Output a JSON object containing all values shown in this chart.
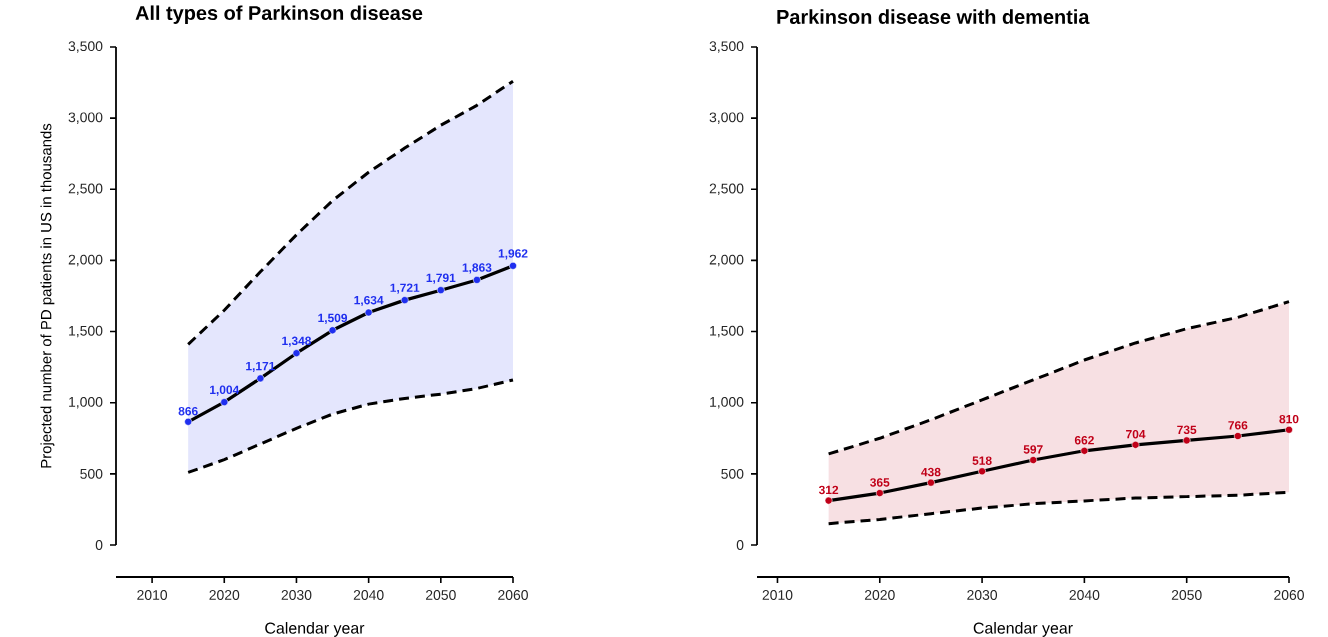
{
  "chart_data": [
    {
      "type": "line",
      "title": "All types of Parkinson disease",
      "xlabel": "Calendar year",
      "ylabel": "Projected number of PD patients in US in thousands",
      "x": [
        2015,
        2020,
        2025,
        2030,
        2035,
        2040,
        2045,
        2050,
        2055,
        2060
      ],
      "series": [
        {
          "color": "#1f2fef",
          "values": [
            866,
            1004,
            1171,
            1348,
            1509,
            1634,
            1721,
            1791,
            1863,
            1962
          ],
          "value_labels": [
            "866",
            "1,004",
            "1,171",
            "1,348",
            "1,509",
            "1,634",
            "1,721",
            "1,791",
            "1,863",
            "1,962"
          ],
          "lower": [
            510,
            600,
            710,
            820,
            920,
            990,
            1030,
            1060,
            1100,
            1160
          ],
          "upper": [
            1410,
            1650,
            1920,
            2180,
            2420,
            2620,
            2790,
            2950,
            3090,
            3260
          ]
        },
        {
          "color": "#000000",
          "line_style": "dashed",
          "marker": "none",
          "values": [
            1410,
            1650,
            1920,
            2180,
            2420,
            2620,
            2790,
            2950,
            3090,
            3260
          ]
        },
        {
          "color": "#000000",
          "line_style": "dashed",
          "marker": "none",
          "values": [
            510,
            600,
            710,
            820,
            920,
            990,
            1030,
            1060,
            1100,
            1160
          ]
        }
      ],
      "xlim": [
        2005,
        2060
      ],
      "ylim": [
        0,
        3500
      ],
      "xticks": [
        2010,
        2020,
        2030,
        2040,
        2050,
        2060
      ],
      "yticks": [
        0,
        500,
        {
          "value": 1000,
          "label": "1,000"
        },
        {
          "value": 1500,
          "label": "1,500"
        },
        {
          "value": 2000,
          "label": "2,000"
        },
        {
          "value": 2500,
          "label": "2,500"
        },
        {
          "value": 3000,
          "label": "3,000"
        },
        {
          "value": 3500,
          "label": "3,500"
        }
      ],
      "marker": "circle",
      "line_style": "solid"
    },
    {
      "type": "line",
      "title": "Parkinson disease with dementia",
      "xlabel": "Calendar year",
      "x": [
        2015,
        2020,
        2025,
        2030,
        2035,
        2040,
        2045,
        2050,
        2055,
        2060
      ],
      "series": [
        {
          "color": "#c00018",
          "values": [
            312,
            365,
            438,
            518,
            597,
            662,
            704,
            735,
            766,
            810
          ],
          "value_labels": [
            "312",
            "365",
            "438",
            "518",
            "597",
            "662",
            "704",
            "735",
            "766",
            "810"
          ],
          "lower": [
            150,
            180,
            220,
            260,
            290,
            310,
            330,
            340,
            350,
            370
          ],
          "upper": [
            640,
            750,
            880,
            1020,
            1160,
            1300,
            1420,
            1520,
            1600,
            1710
          ]
        },
        {
          "color": "#000000",
          "line_style": "dashed",
          "marker": "none",
          "values": [
            640,
            750,
            880,
            1020,
            1160,
            1300,
            1420,
            1520,
            1600,
            1710
          ]
        },
        {
          "color": "#000000",
          "line_style": "dashed",
          "marker": "none",
          "values": [
            150,
            180,
            220,
            260,
            290,
            310,
            330,
            340,
            350,
            370
          ]
        }
      ],
      "xlim": [
        2008,
        2060
      ],
      "ylim": [
        0,
        3500
      ],
      "xticks": [
        2010,
        2020,
        2030,
        2040,
        2050,
        2060
      ],
      "yticks": [
        0,
        500,
        {
          "value": 1000,
          "label": "1,000"
        },
        {
          "value": 1500,
          "label": "1,500"
        },
        {
          "value": 2000,
          "label": "2,000"
        },
        {
          "value": 2500,
          "label": "2,500"
        },
        {
          "value": 3000,
          "label": "3,000"
        },
        {
          "value": 3500,
          "label": "3,500"
        }
      ],
      "marker": "circle",
      "line_style": "solid"
    }
  ]
}
